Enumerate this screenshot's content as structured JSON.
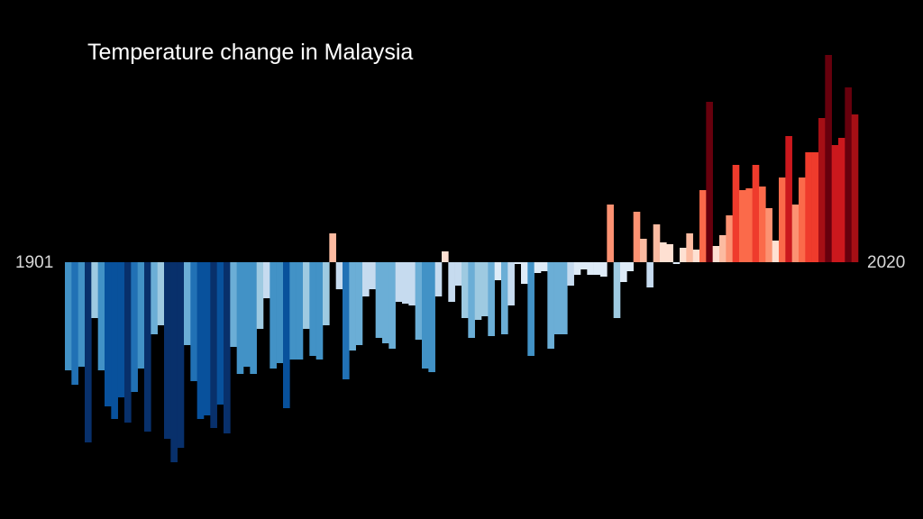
{
  "chart_data": {
    "type": "bar",
    "title": "Temperature change in Malaysia",
    "start_year": 1901,
    "end_year": 2020,
    "start_label": "1901",
    "end_label": "2020",
    "units": "relative anomaly (estimated, no axis shown)",
    "ylim": [
      -1.15,
      1.15
    ],
    "values": [
      -0.6,
      -0.68,
      -0.58,
      -1.0,
      -0.31,
      -0.6,
      -0.8,
      -0.87,
      -0.75,
      -0.89,
      -0.72,
      -0.59,
      -0.94,
      -0.4,
      -0.35,
      -0.98,
      -1.11,
      -1.03,
      -0.46,
      -0.66,
      -0.87,
      -0.85,
      -0.92,
      -0.79,
      -0.95,
      -0.47,
      -0.62,
      -0.58,
      -0.62,
      -0.37,
      -0.2,
      -0.59,
      -0.56,
      -0.81,
      -0.54,
      -0.54,
      -0.37,
      -0.52,
      -0.54,
      -0.35,
      0.16,
      -0.15,
      -0.65,
      -0.49,
      -0.46,
      -0.19,
      -0.15,
      -0.42,
      -0.45,
      -0.48,
      -0.22,
      -0.23,
      -0.24,
      -0.43,
      -0.59,
      -0.61,
      -0.19,
      0.06,
      -0.22,
      -0.13,
      -0.31,
      -0.42,
      -0.32,
      -0.3,
      -0.41,
      -0.1,
      -0.4,
      -0.24,
      -0.01,
      -0.12,
      -0.52,
      -0.06,
      -0.05,
      -0.48,
      -0.4,
      -0.4,
      -0.13,
      -0.07,
      -0.04,
      -0.07,
      -0.07,
      -0.08,
      0.32,
      -0.31,
      -0.11,
      -0.05,
      0.28,
      0.13,
      -0.14,
      0.21,
      0.11,
      0.1,
      -0.01,
      0.08,
      0.16,
      0.07,
      0.4,
      0.89,
      0.09,
      0.15,
      0.26,
      0.54,
      0.4,
      0.41,
      0.54,
      0.42,
      0.3,
      0.12,
      0.47,
      0.7,
      0.32,
      0.47,
      0.61,
      0.61,
      0.8,
      1.15,
      0.65,
      0.69,
      0.97,
      0.82
    ],
    "colors": {
      "cold_dark": "#08306b",
      "cold_light": "#deebf7",
      "warm_light": "#fee0d2",
      "warm_dark": "#67000d",
      "background": "#000000"
    }
  }
}
